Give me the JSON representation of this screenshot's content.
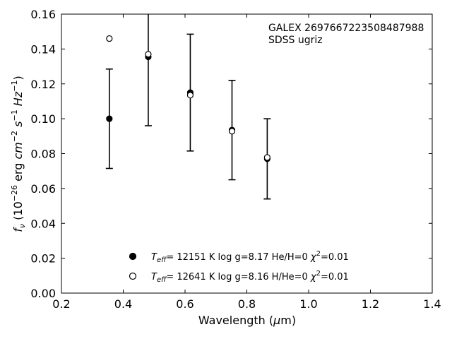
{
  "chart_data": {
    "type": "scatter",
    "xlabel": "Wavelength (μm)",
    "ylabel": "f_ν (10^-26 erg cm^-2 s^-1 Hz^-1)",
    "xlim": [
      0.2,
      1.4
    ],
    "ylim": [
      0.0,
      0.16
    ],
    "x_ticks": [
      "0.2",
      "0.4",
      "0.6",
      "0.8",
      "1.0",
      "1.2",
      "1.4"
    ],
    "y_ticks": [
      "0.00",
      "0.02",
      "0.04",
      "0.06",
      "0.08",
      "0.10",
      "0.12",
      "0.14",
      "0.16"
    ],
    "annotations": [
      "GALEX 2697667223508487988",
      "SDSS ugriz"
    ],
    "grid": false,
    "legend_position": "bottom-center",
    "observed": {
      "x": [
        0.355,
        0.481,
        0.617,
        0.752,
        0.866
      ],
      "y": [
        0.1,
        0.1355,
        0.115,
        0.0935,
        0.077
      ],
      "yerr": [
        0.0285,
        0.0395,
        0.0335,
        0.0285,
        0.023
      ]
    },
    "series": [
      {
        "label": "T_eff= 12151 K  log g=8.17  He/H=0  χ²=0.01",
        "marker": "filled-circle",
        "x": [
          0.355,
          0.481,
          0.617,
          0.752,
          0.866
        ],
        "y": [
          0.1,
          0.1355,
          0.115,
          0.0935,
          0.077
        ]
      },
      {
        "label": "T_eff= 12641 K  log g=8.16  H/He=0  χ²=0.01",
        "marker": "open-circle",
        "x": [
          0.355,
          0.481,
          0.617,
          0.752,
          0.866
        ],
        "y": [
          0.146,
          0.137,
          0.1135,
          0.0928,
          0.0778
        ]
      }
    ]
  }
}
